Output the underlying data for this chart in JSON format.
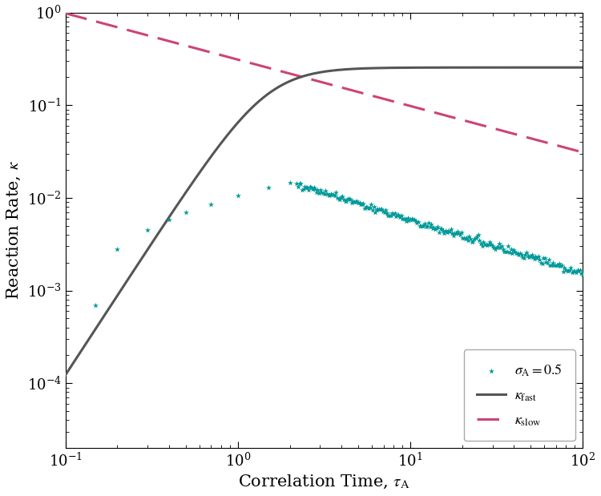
{
  "xlabel": "Correlation Time, $\\tau_{\\mathrm{A}}$",
  "ylabel": "Reaction Rate, $\\kappa$",
  "xlim_log": [
    -1,
    2
  ],
  "ylim_log": [
    -4.7,
    0
  ],
  "teal_color": "#009999",
  "gray_color": "#555555",
  "pink_color": "#cc4477",
  "sigma_A": 0.5,
  "kmax_fast": 0.255,
  "tau_half_fast": 0.28,
  "n_hill": 2.2,
  "A_slow": 0.085,
  "slope_slow": -0.5,
  "tau_slow_start": 0.5,
  "legend_label_stars": "$\\sigma_{\\mathrm{A}} = 0.5$",
  "legend_label_fast": "$\\kappa_{\\mathrm{fast}}$",
  "legend_label_slow": "$\\kappa_{\\mathrm{slow}}$",
  "sparse_tau": [
    0.15,
    0.2,
    0.3,
    0.4,
    0.5,
    0.7,
    1.0,
    1.5,
    2.0
  ],
  "sparse_val": [
    0.0007,
    0.0028,
    0.0045,
    0.0058,
    0.007,
    0.0085,
    0.0105,
    0.013,
    0.0145
  ]
}
